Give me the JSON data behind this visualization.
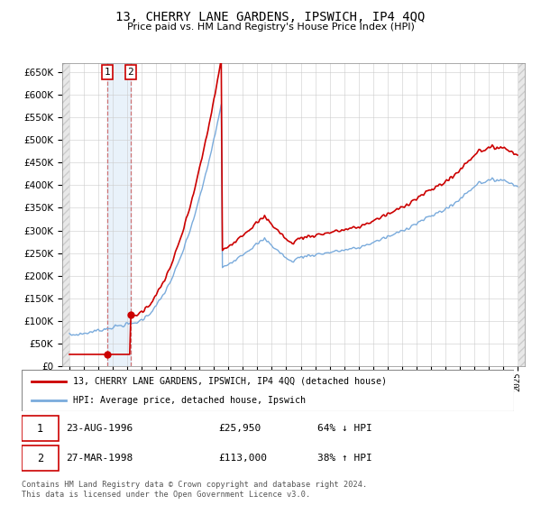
{
  "title": "13, CHERRY LANE GARDENS, IPSWICH, IP4 4QQ",
  "subtitle": "Price paid vs. HM Land Registry's House Price Index (HPI)",
  "transactions": [
    {
      "date_yr": 1996.64,
      "price": 25950,
      "label": "1"
    },
    {
      "date_yr": 1998.23,
      "price": 113000,
      "label": "2"
    }
  ],
  "transaction_info": [
    {
      "label": "1",
      "date_str": "23-AUG-1996",
      "price_str": "£25,950",
      "pct_str": "64% ↓ HPI"
    },
    {
      "label": "2",
      "date_str": "27-MAR-1998",
      "price_str": "£113,000",
      "pct_str": "38% ↑ HPI"
    }
  ],
  "legend_line1": "13, CHERRY LANE GARDENS, IPSWICH, IP4 4QQ (detached house)",
  "legend_line2": "HPI: Average price, detached house, Ipswich",
  "footer": "Contains HM Land Registry data © Crown copyright and database right 2024.\nThis data is licensed under the Open Government Licence v3.0.",
  "price_line_color": "#cc0000",
  "hpi_line_color": "#7aabdc",
  "marker_color": "#cc0000",
  "dashed_line_color": "#cc6666",
  "highlight_color": "#ddeeff",
  "box_color": "#cc0000"
}
